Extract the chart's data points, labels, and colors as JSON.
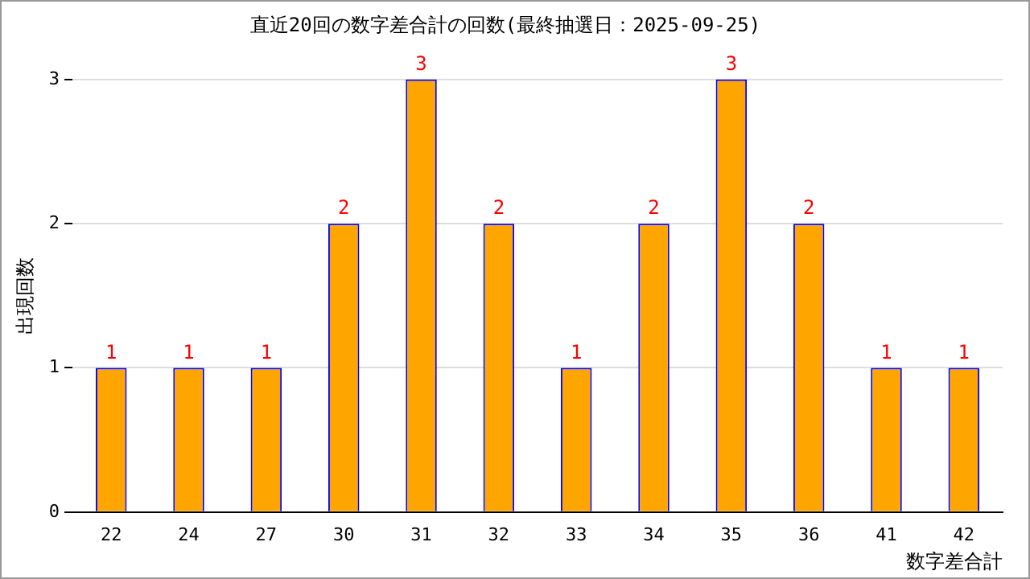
{
  "chart_data": {
    "type": "bar",
    "title": "直近20回の数字差合計の回数(最終抽選日：2025-09-25)",
    "xlabel": "数字差合計",
    "ylabel": "出現回数",
    "categories": [
      "22",
      "24",
      "27",
      "30",
      "31",
      "32",
      "33",
      "34",
      "35",
      "36",
      "41",
      "42"
    ],
    "values": [
      1,
      1,
      1,
      2,
      3,
      2,
      1,
      2,
      3,
      2,
      1,
      1
    ],
    "color": "#ffa500",
    "ylim": [
      0,
      3
    ],
    "yticks": [
      0,
      1,
      2,
      3
    ],
    "grid": "y",
    "data_labels": true,
    "legend": false
  }
}
